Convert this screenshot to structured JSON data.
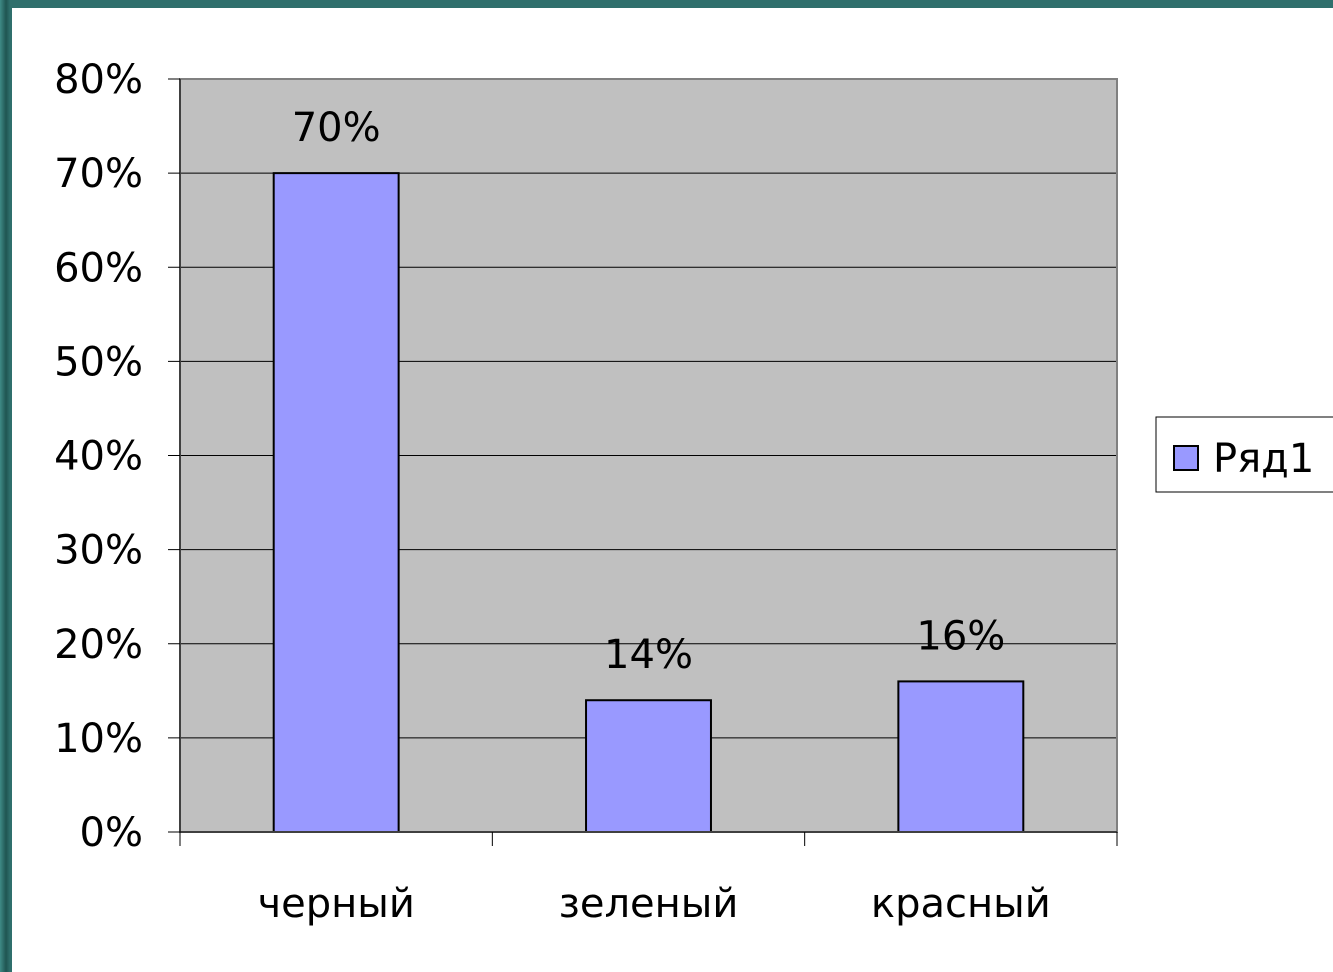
{
  "chart_data": {
    "type": "bar",
    "categories": [
      "черный",
      "зеленый",
      "красный"
    ],
    "series": [
      {
        "name": "Ряд1",
        "values": [
          70,
          14,
          16
        ]
      }
    ],
    "data_labels": [
      "70%",
      "14%",
      "16%"
    ],
    "y_ticks": [
      "0%",
      "10%",
      "20%",
      "30%",
      "40%",
      "50%",
      "60%",
      "70%",
      "80%"
    ],
    "ylim": [
      0,
      80
    ],
    "grid": true,
    "legend_position": "right",
    "colors": {
      "plot_background": "#c0c0c0",
      "bar_fill": "#9999ff",
      "bar_stroke": "#000000",
      "gridline": "#000000",
      "outer_frame": "#2f6f6c"
    }
  }
}
